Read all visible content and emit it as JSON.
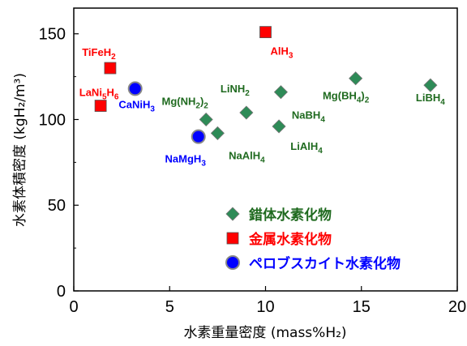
{
  "chart_data": {
    "type": "scatter",
    "xlabel": "水素重量密度 (mass%H₂)",
    "ylabel": "水素体積密度 (kgH₂/m³)",
    "xlim": [
      0,
      20
    ],
    "ylim": [
      0,
      165
    ],
    "xticks": [
      "0",
      "5",
      "10",
      "15",
      "20"
    ],
    "yticks": [
      "0",
      "50",
      "100",
      "150"
    ],
    "grid": false,
    "legend_position": "bottom-right",
    "series": [
      {
        "name": "錯体水素化物",
        "marker": "diamond",
        "color": "#2e8b57",
        "label_color": "#1f6a1f",
        "points": [
          {
            "label": "LiBH4",
            "x": 18.6,
            "y": 120
          },
          {
            "label": "Mg(BH4)2",
            "x": 14.7,
            "y": 124
          },
          {
            "label": "NaBH4",
            "x": 10.8,
            "y": 116
          },
          {
            "label": "LiAlH4",
            "x": 10.7,
            "y": 96
          },
          {
            "label": "LiNH2",
            "x": 9.0,
            "y": 104
          },
          {
            "label": "Mg(NH2)2",
            "x": 6.9,
            "y": 100
          },
          {
            "label": "NaAlH4",
            "x": 7.5,
            "y": 92
          }
        ]
      },
      {
        "name": "金属水素化物",
        "marker": "square",
        "color": "#ff0000",
        "label_color": "#ff0000",
        "points": [
          {
            "label": "AlH3",
            "x": 10.0,
            "y": 151
          },
          {
            "label": "TiFeH2",
            "x": 1.9,
            "y": 130
          },
          {
            "label": "LaNi5H6",
            "x": 1.4,
            "y": 108
          }
        ]
      },
      {
        "name": "ペロブスカイト水素化物",
        "marker": "circle",
        "color": "#0000ff",
        "label_color": "#0000ff",
        "points": [
          {
            "label": "CaNiH3",
            "x": 3.2,
            "y": 118
          },
          {
            "label": "NaMgH3",
            "x": 6.5,
            "y": 90
          }
        ]
      }
    ]
  }
}
